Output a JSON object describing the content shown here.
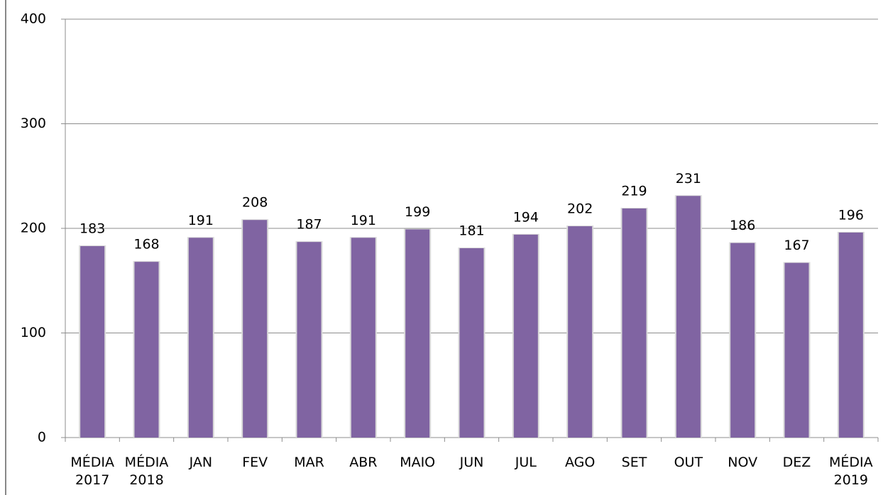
{
  "chart_data": {
    "type": "bar",
    "categories": [
      "MÉDIA 2017",
      "MÉDIA 2018",
      "JAN",
      "FEV",
      "MAR",
      "ABR",
      "MAIO",
      "JUN",
      "JUL",
      "AGO",
      "SET",
      "OUT",
      "NOV",
      "DEZ",
      "MÉDIA 2019"
    ],
    "values": [
      183,
      168,
      191,
      208,
      187,
      191,
      199,
      181,
      194,
      202,
      219,
      231,
      186,
      167,
      196
    ],
    "color": "#8064a2",
    "ylim": [
      0,
      400
    ],
    "yticks": [
      0,
      100,
      200,
      300,
      400
    ],
    "grid": true
  }
}
